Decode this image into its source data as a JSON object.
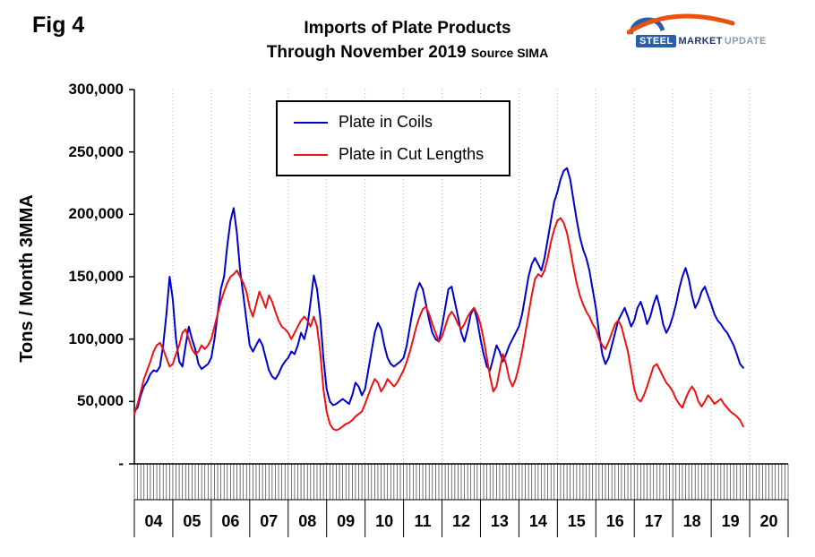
{
  "fig_label": "Fig 4",
  "header": {
    "title_line1": "Imports of Plate Products",
    "title_line2": "Through November 2019",
    "source": "Source SIMA"
  },
  "logo": {
    "steel": "STEEL",
    "market": "MARKET",
    "update": "UPDATE",
    "swoosh_color": "#E8520F",
    "coil_color": "#2B5DA9",
    "text_color": "#1F3864",
    "update_color": "#8C9BAA"
  },
  "y_axis_label": "Tons / Month 3MMA",
  "chart_data": {
    "type": "line",
    "title": "Imports of Plate Products Through November 2019",
    "source": "SIMA",
    "xlabel": "",
    "ylabel": "Tons / Month 3MMA",
    "ylim": [
      0,
      300000
    ],
    "grid": "vertical-dotted-yearly",
    "legend_position": "top-center-inside",
    "x_unit": "month",
    "x_start": "2004-01",
    "x_end": "2019-11",
    "x_year_labels": [
      "04",
      "05",
      "06",
      "07",
      "08",
      "09",
      "10",
      "11",
      "12",
      "13",
      "14",
      "15",
      "16",
      "17",
      "18",
      "19",
      "20"
    ],
    "y_ticks": [
      {
        "label": "300,000",
        "value": 300000
      },
      {
        "label": "250,000",
        "value": 250000
      },
      {
        "label": "200,000",
        "value": 200000
      },
      {
        "label": "150,000",
        "value": 150000
      },
      {
        "label": "100,000",
        "value": 100000
      },
      {
        "label": "50,000",
        "value": 50000
      },
      {
        "label": "-",
        "value": 0
      }
    ],
    "series": [
      {
        "name": "Plate in Coils",
        "color": "#0000CD",
        "values": [
          42000,
          45000,
          55000,
          62000,
          66000,
          72000,
          75000,
          74000,
          78000,
          95000,
          120000,
          150000,
          132000,
          100000,
          82000,
          78000,
          95000,
          110000,
          100000,
          92000,
          80000,
          76000,
          78000,
          80000,
          85000,
          100000,
          120000,
          140000,
          150000,
          175000,
          195000,
          205000,
          185000,
          155000,
          135000,
          115000,
          95000,
          90000,
          95000,
          100000,
          95000,
          85000,
          75000,
          70000,
          68000,
          72000,
          78000,
          82000,
          85000,
          90000,
          88000,
          95000,
          105000,
          100000,
          110000,
          130000,
          151000,
          140000,
          118000,
          85000,
          60000,
          50000,
          47000,
          48000,
          50000,
          52000,
          50000,
          48000,
          55000,
          65000,
          62000,
          55000,
          60000,
          75000,
          90000,
          105000,
          113000,
          108000,
          95000,
          85000,
          80000,
          78000,
          80000,
          82000,
          85000,
          95000,
          110000,
          125000,
          138000,
          145000,
          140000,
          128000,
          115000,
          105000,
          100000,
          98000,
          110000,
          125000,
          140000,
          142000,
          130000,
          118000,
          105000,
          98000,
          108000,
          120000,
          125000,
          115000,
          100000,
          88000,
          78000,
          75000,
          85000,
          95000,
          90000,
          82000,
          88000,
          95000,
          100000,
          105000,
          110000,
          120000,
          135000,
          150000,
          160000,
          165000,
          160000,
          155000,
          165000,
          180000,
          195000,
          210000,
          218000,
          228000,
          235000,
          237000,
          228000,
          212000,
          196000,
          182000,
          172000,
          165000,
          155000,
          140000,
          125000,
          105000,
          88000,
          80000,
          85000,
          95000,
          105000,
          115000,
          120000,
          125000,
          118000,
          110000,
          115000,
          125000,
          130000,
          122000,
          112000,
          118000,
          128000,
          135000,
          125000,
          112000,
          105000,
          110000,
          118000,
          128000,
          140000,
          150000,
          157000,
          148000,
          135000,
          125000,
          130000,
          138000,
          142000,
          135000,
          128000,
          120000,
          115000,
          112000,
          108000,
          105000,
          100000,
          95000,
          88000,
          80000,
          77000
        ]
      },
      {
        "name": "Plate in Cut Lengths",
        "color": "#EE1111",
        "values": [
          40000,
          48000,
          58000,
          68000,
          75000,
          82000,
          90000,
          95000,
          97000,
          92000,
          85000,
          78000,
          80000,
          88000,
          95000,
          105000,
          108000,
          100000,
          92000,
          88000,
          90000,
          95000,
          92000,
          95000,
          100000,
          110000,
          120000,
          130000,
          138000,
          145000,
          150000,
          152000,
          155000,
          150000,
          145000,
          138000,
          125000,
          118000,
          128000,
          138000,
          132000,
          125000,
          135000,
          130000,
          122000,
          115000,
          110000,
          108000,
          105000,
          100000,
          105000,
          110000,
          115000,
          118000,
          115000,
          110000,
          118000,
          110000,
          90000,
          60000,
          42000,
          32000,
          28000,
          27000,
          28000,
          30000,
          32000,
          33000,
          35000,
          38000,
          40000,
          42000,
          48000,
          55000,
          62000,
          68000,
          65000,
          58000,
          62000,
          68000,
          65000,
          62000,
          65000,
          70000,
          75000,
          82000,
          90000,
          100000,
          110000,
          118000,
          124000,
          126000,
          120000,
          112000,
          105000,
          98000,
          102000,
          110000,
          118000,
          122000,
          118000,
          112000,
          108000,
          112000,
          118000,
          122000,
          125000,
          120000,
          112000,
          100000,
          85000,
          70000,
          58000,
          62000,
          75000,
          88000,
          80000,
          68000,
          62000,
          68000,
          78000,
          90000,
          105000,
          120000,
          135000,
          148000,
          152000,
          150000,
          155000,
          165000,
          178000,
          188000,
          195000,
          197000,
          193000,
          185000,
          172000,
          158000,
          145000,
          135000,
          128000,
          122000,
          118000,
          112000,
          108000,
          100000,
          95000,
          92000,
          98000,
          105000,
          112000,
          115000,
          110000,
          100000,
          90000,
          75000,
          60000,
          52000,
          50000,
          55000,
          62000,
          70000,
          78000,
          80000,
          75000,
          70000,
          65000,
          62000,
          58000,
          52000,
          48000,
          45000,
          52000,
          58000,
          62000,
          58000,
          50000,
          46000,
          50000,
          55000,
          52000,
          48000,
          50000,
          52000,
          48000,
          45000,
          42000,
          40000,
          38000,
          35000,
          30000
        ]
      }
    ]
  }
}
